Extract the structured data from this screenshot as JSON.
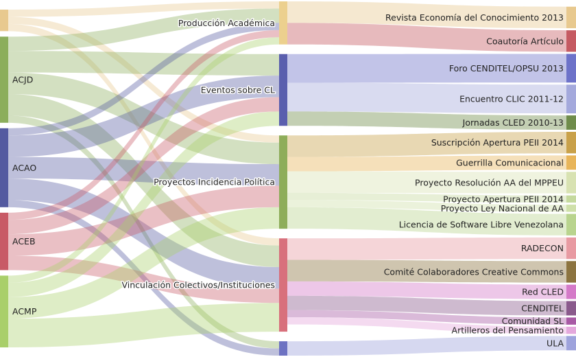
{
  "diagram": {
    "type": "sankey",
    "sources": [
      {
        "id": "s_top",
        "label": "",
        "color": "#e8c98f"
      },
      {
        "id": "acjd",
        "label": "ACJD",
        "color": "#8cae5b"
      },
      {
        "id": "acao",
        "label": "ACAO",
        "color": "#545aa0"
      },
      {
        "id": "aceb",
        "label": "ACEB",
        "color": "#c85a66"
      },
      {
        "id": "acmp",
        "label": "ACMP",
        "color": "#a9cf6a"
      }
    ],
    "categories": [
      {
        "id": "prod",
        "label": "Producción Académica",
        "color": "#ecd08e"
      },
      {
        "id": "even",
        "label": "Eventos sobre CL",
        "color": "#5a5fae"
      },
      {
        "id": "proy",
        "label": "Proyectos Incidencia Política",
        "color": "#8ead5a"
      },
      {
        "id": "vinc",
        "label": "Vinculación Colectivos/Instituciones",
        "color": "#d8707c"
      },
      {
        "id": "other",
        "label": "",
        "color": "#6d72c2"
      }
    ],
    "targets": [
      {
        "id": "t1",
        "label": "Revista Economía del Conocimiento 2013",
        "cat": "prod",
        "color": "#e8c98f"
      },
      {
        "id": "t2",
        "label": "Coautoría Artículo",
        "cat": "prod",
        "color": "#c55a62"
      },
      {
        "id": "t3",
        "label": "Foro CENDITEL/OPSU 2013",
        "cat": "even",
        "color": "#6d72c9"
      },
      {
        "id": "t4",
        "label": "Encuentro CLIC 2011-12",
        "cat": "even",
        "color": "#a4a9dc"
      },
      {
        "id": "t5",
        "label": "Jornadas CLED 2010-13",
        "cat": "even",
        "color": "#6f8c4b"
      },
      {
        "id": "t6",
        "label": "Suscripción Apertura PEII 2014",
        "cat": "proy",
        "color": "#c9a14a"
      },
      {
        "id": "t7",
        "label": "Guerrilla Comunicacional",
        "cat": "proy",
        "color": "#e8b55a"
      },
      {
        "id": "t8",
        "label": "Proyecto Resolución AA del MPPEU",
        "cat": "proy",
        "color": "#d8e2b2"
      },
      {
        "id": "t9",
        "label": "Proyecto Apertura PEII 2014",
        "cat": "proy",
        "color": "#c5d99e"
      },
      {
        "id": "t10",
        "label": "Proyecto Ley Nacional de AA",
        "cat": "proy",
        "color": "#cfe0aa"
      },
      {
        "id": "t11",
        "label": "Licencia de Software Libre Venezolana",
        "cat": "proy",
        "color": "#b9d48e"
      },
      {
        "id": "t12",
        "label": "RADECON",
        "cat": "vinc",
        "color": "#e89aa2"
      },
      {
        "id": "t13",
        "label": "Comité Colaboradores Creative Commons",
        "cat": "vinc",
        "color": "#8c7440"
      },
      {
        "id": "t14",
        "label": "Red CLED",
        "cat": "vinc",
        "color": "#d47ac8"
      },
      {
        "id": "t15",
        "label": "CENDITEL",
        "cat": "vinc",
        "color": "#8a5a8c"
      },
      {
        "id": "t16",
        "label": "Comunidad SL",
        "cat": "vinc",
        "color": "#a85aa5"
      },
      {
        "id": "t17",
        "label": "Artilleros del Pensamiento",
        "cat": "vinc",
        "color": "#e4a8dc"
      },
      {
        "id": "t18",
        "label": "ULA",
        "cat": "other",
        "color": "#9ea3dc"
      }
    ],
    "flows": [
      {
        "from": "s_top",
        "to": "prod",
        "value": 1
      },
      {
        "from": "s_top",
        "to": "proy",
        "value": 1
      },
      {
        "from": "s_top",
        "to": "vinc",
        "value": 1
      },
      {
        "from": "acjd",
        "to": "prod",
        "value": 2
      },
      {
        "from": "acjd",
        "to": "even",
        "value": 3
      },
      {
        "from": "acjd",
        "to": "proy",
        "value": 3
      },
      {
        "from": "acjd",
        "to": "vinc",
        "value": 3
      },
      {
        "from": "acjd",
        "to": "other",
        "value": 1
      },
      {
        "from": "acao",
        "to": "prod",
        "value": 1
      },
      {
        "from": "acao",
        "to": "even",
        "value": 3
      },
      {
        "from": "acao",
        "to": "proy",
        "value": 3
      },
      {
        "from": "acao",
        "to": "vinc",
        "value": 3
      },
      {
        "from": "acao",
        "to": "other",
        "value": 1
      },
      {
        "from": "aceb",
        "to": "prod",
        "value": 1
      },
      {
        "from": "aceb",
        "to": "even",
        "value": 2
      },
      {
        "from": "aceb",
        "to": "proy",
        "value": 3
      },
      {
        "from": "aceb",
        "to": "vinc",
        "value": 2
      },
      {
        "from": "acmp",
        "to": "prod",
        "value": 1
      },
      {
        "from": "acmp",
        "to": "even",
        "value": 2
      },
      {
        "from": "acmp",
        "to": "proy",
        "value": 3
      },
      {
        "from": "acmp",
        "to": "vinc",
        "value": 4
      },
      {
        "from": "prod",
        "to": "t1",
        "value": 3
      },
      {
        "from": "prod",
        "to": "t2",
        "value": 3
      },
      {
        "from": "even",
        "to": "t3",
        "value": 4
      },
      {
        "from": "even",
        "to": "t4",
        "value": 4
      },
      {
        "from": "even",
        "to": "t5",
        "value": 2
      },
      {
        "from": "proy",
        "to": "t6",
        "value": 3
      },
      {
        "from": "proy",
        "to": "t7",
        "value": 2
      },
      {
        "from": "proy",
        "to": "t8",
        "value": 3
      },
      {
        "from": "proy",
        "to": "t9",
        "value": 1
      },
      {
        "from": "proy",
        "to": "t10",
        "value": 1
      },
      {
        "from": "proy",
        "to": "t11",
        "value": 3
      },
      {
        "from": "vinc",
        "to": "t12",
        "value": 3
      },
      {
        "from": "vinc",
        "to": "t13",
        "value": 3
      },
      {
        "from": "vinc",
        "to": "t14",
        "value": 2
      },
      {
        "from": "vinc",
        "to": "t15",
        "value": 2
      },
      {
        "from": "vinc",
        "to": "t16",
        "value": 1
      },
      {
        "from": "vinc",
        "to": "t17",
        "value": 1
      },
      {
        "from": "other",
        "to": "t18",
        "value": 2
      }
    ]
  }
}
